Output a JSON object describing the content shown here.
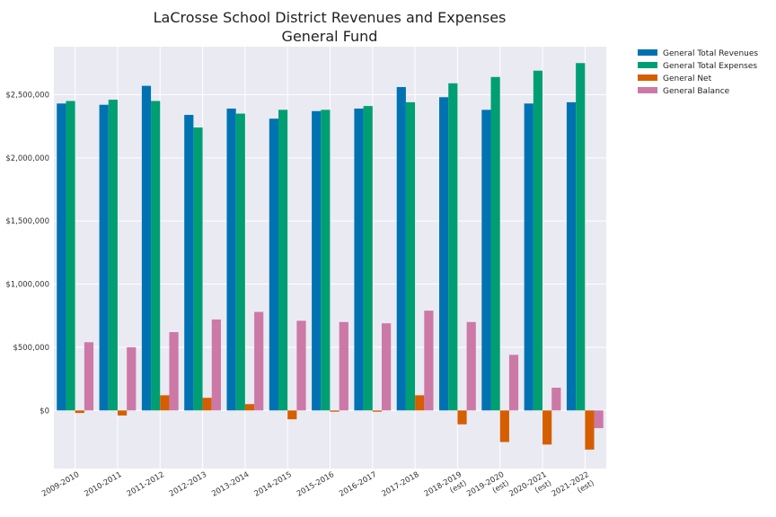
{
  "chart_data": {
    "type": "bar",
    "title": "LaCrosse School District Revenues and Expenses",
    "subtitle": "General Fund",
    "xlabel": "",
    "ylabel": "",
    "ylim": [
      -460000,
      2880000
    ],
    "yticks": [
      {
        "value": 0,
        "label": "$0"
      },
      {
        "value": 500000,
        "label": "$500,000"
      },
      {
        "value": 1000000,
        "label": "$1,000,000"
      },
      {
        "value": 1500000,
        "label": "$1,500,000"
      },
      {
        "value": 2000000,
        "label": "$2,000,000"
      },
      {
        "value": 2500000,
        "label": "$2,500,000"
      }
    ],
    "grid": true,
    "legend_position": "outside-top-right",
    "categories": [
      [
        "2009-2010"
      ],
      [
        "2010-2011"
      ],
      [
        "2011-2012"
      ],
      [
        "2012-2013"
      ],
      [
        "2013-2014"
      ],
      [
        "2014-2015"
      ],
      [
        "2015-2016"
      ],
      [
        "2016-2017"
      ],
      [
        "2017-2018"
      ],
      [
        "2018-2019",
        "(est)"
      ],
      [
        "2019-2020",
        "(est)"
      ],
      [
        "2020-2021",
        "(est)"
      ],
      [
        "2021-2022",
        "(est)"
      ]
    ],
    "series": [
      {
        "name": "General Total Revenues",
        "color": "#0072b2",
        "values": [
          2430000,
          2420000,
          2570000,
          2340000,
          2390000,
          2310000,
          2370000,
          2390000,
          2560000,
          2480000,
          2380000,
          2430000,
          2440000
        ]
      },
      {
        "name": "General Total Expenses",
        "color": "#009e73",
        "values": [
          2450000,
          2460000,
          2450000,
          2240000,
          2350000,
          2380000,
          2380000,
          2410000,
          2440000,
          2590000,
          2640000,
          2690000,
          2750000
        ]
      },
      {
        "name": "General Net",
        "color": "#d55e00",
        "values": [
          -20000,
          -40000,
          120000,
          100000,
          50000,
          -70000,
          -10000,
          -10000,
          120000,
          -110000,
          -250000,
          -270000,
          -310000
        ]
      },
      {
        "name": "General Balance",
        "color": "#cc79a7",
        "values": [
          540000,
          500000,
          620000,
          720000,
          780000,
          710000,
          700000,
          690000,
          790000,
          700000,
          440000,
          180000,
          -140000
        ]
      }
    ]
  }
}
